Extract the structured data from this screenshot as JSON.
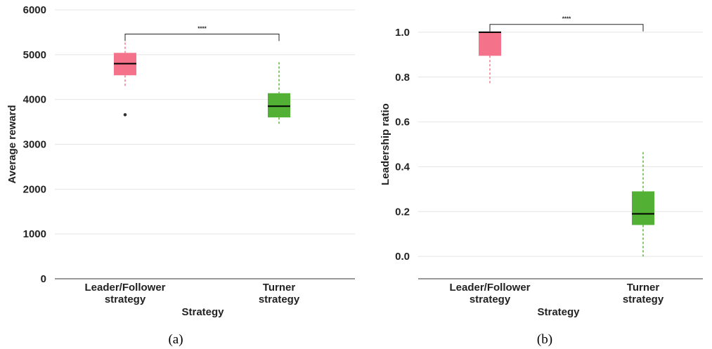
{
  "chart_data": [
    {
      "type": "box",
      "panel_label": "(a)",
      "xlabel": "Strategy",
      "ylabel": "Average reward",
      "ylim": [
        0,
        6000
      ],
      "yticks": [
        0,
        1000,
        2000,
        3000,
        4000,
        5000,
        6000
      ],
      "categories": [
        [
          "Leader/Follower",
          "strategy"
        ],
        [
          "Turner",
          "strategy"
        ]
      ],
      "colors": [
        "#f5738a",
        "#52b135"
      ],
      "boxes": [
        {
          "q1": 4540,
          "median": 4800,
          "q3": 5040,
          "whisker_low": 4260,
          "whisker_high": 5270,
          "outliers": [
            3660
          ]
        },
        {
          "q1": 3600,
          "median": 3850,
          "q3": 4140,
          "whisker_low": 3420,
          "whisker_high": 4830,
          "outliers": []
        }
      ],
      "significance": {
        "from": 0,
        "to": 1,
        "y": 5460,
        "label": "****"
      },
      "grid": true
    },
    {
      "type": "box",
      "panel_label": "(b)",
      "xlabel": "Strategy",
      "ylabel": "Leadership ratio",
      "ylim": [
        -0.1,
        1.1
      ],
      "yticks": [
        0.0,
        0.2,
        0.4,
        0.6,
        0.8,
        1.0
      ],
      "categories": [
        [
          "Leader/Follower",
          "strategy"
        ],
        [
          "Turner",
          "strategy"
        ]
      ],
      "colors": [
        "#f5738a",
        "#52b135"
      ],
      "boxes": [
        {
          "q1": 0.895,
          "median": 1.0,
          "q3": 1.0,
          "whisker_low": 0.765,
          "whisker_high": 1.0,
          "outliers": []
        },
        {
          "q1": 0.14,
          "median": 0.19,
          "q3": 0.29,
          "whisker_low": 0.0,
          "whisker_high": 0.465,
          "outliers": []
        }
      ],
      "significance": {
        "from": 0,
        "to": 1,
        "y": 1.035,
        "label": "****"
      },
      "grid": true
    }
  ]
}
